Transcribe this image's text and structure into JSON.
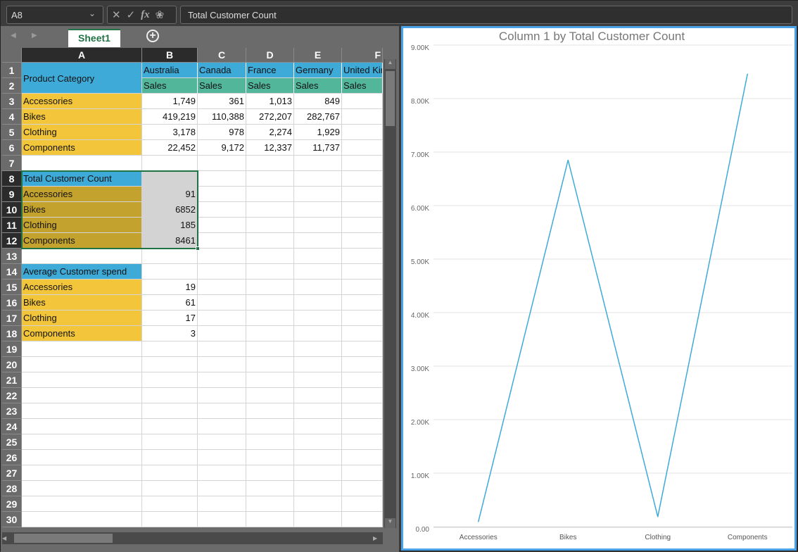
{
  "formula_bar": {
    "name_box": "A8",
    "formula": "Total Customer Count"
  },
  "sheet_tabs": [
    {
      "label": "Sheet1",
      "active": true
    }
  ],
  "columns": [
    "A",
    "B",
    "C",
    "D",
    "E",
    "F"
  ],
  "selected_columns": [
    "A",
    "B"
  ],
  "selected_rows": [
    8,
    9,
    10,
    11,
    12
  ],
  "colors": {
    "header_blue": "#3eaad8",
    "sales_green": "#52b69a",
    "category_yellow": "#f2c53b",
    "selected_gold": "#c4a22e",
    "selected_gray": "#d3d3d3",
    "chart_line": "#3eaad8",
    "selection": "#217346",
    "chart_border": "#4aa3e8"
  },
  "rows": [
    {
      "n": 1,
      "cells": [
        "Product Category",
        "Australia",
        "Canada",
        "France",
        "Germany",
        "United Kingdom"
      ]
    },
    {
      "n": 2,
      "cells": [
        "",
        "Sales",
        "Sales",
        "Sales",
        "Sales",
        "Sales"
      ]
    },
    {
      "n": 3,
      "cells": [
        "Accessories",
        "1,749",
        "361",
        "1,013",
        "849",
        ""
      ]
    },
    {
      "n": 4,
      "cells": [
        "Bikes",
        "419,219",
        "110,388",
        "272,207",
        "282,767",
        ""
      ]
    },
    {
      "n": 5,
      "cells": [
        "Clothing",
        "3,178",
        "978",
        "2,274",
        "1,929",
        ""
      ]
    },
    {
      "n": 6,
      "cells": [
        "Components",
        "22,452",
        "9,172",
        "12,337",
        "11,737",
        ""
      ]
    },
    {
      "n": 7,
      "cells": [
        "",
        "",
        "",
        "",
        "",
        ""
      ]
    },
    {
      "n": 8,
      "cells": [
        "Total Customer Count",
        "",
        "",
        "",
        "",
        ""
      ]
    },
    {
      "n": 9,
      "cells": [
        "Accessories",
        "91",
        "",
        "",
        "",
        ""
      ]
    },
    {
      "n": 10,
      "cells": [
        "Bikes",
        "6852",
        "",
        "",
        "",
        ""
      ]
    },
    {
      "n": 11,
      "cells": [
        "Clothing",
        "185",
        "",
        "",
        "",
        ""
      ]
    },
    {
      "n": 12,
      "cells": [
        "Components",
        "8461",
        "",
        "",
        "",
        ""
      ]
    },
    {
      "n": 13,
      "cells": [
        "",
        "",
        "",
        "",
        "",
        ""
      ]
    },
    {
      "n": 14,
      "cells": [
        "Average Customer spend",
        "",
        "",
        "",
        "",
        ""
      ]
    },
    {
      "n": 15,
      "cells": [
        "Accessories",
        "19",
        "",
        "",
        "",
        ""
      ]
    },
    {
      "n": 16,
      "cells": [
        "Bikes",
        "61",
        "",
        "",
        "",
        ""
      ]
    },
    {
      "n": 17,
      "cells": [
        "Clothing",
        "17",
        "",
        "",
        "",
        ""
      ]
    },
    {
      "n": 18,
      "cells": [
        "Components",
        "3",
        "",
        "",
        "",
        ""
      ]
    },
    {
      "n": 19,
      "cells": []
    },
    {
      "n": 20,
      "cells": []
    },
    {
      "n": 21,
      "cells": []
    },
    {
      "n": 22,
      "cells": []
    },
    {
      "n": 23,
      "cells": []
    },
    {
      "n": 24,
      "cells": []
    },
    {
      "n": 25,
      "cells": []
    },
    {
      "n": 26,
      "cells": []
    },
    {
      "n": 27,
      "cells": []
    },
    {
      "n": 28,
      "cells": []
    },
    {
      "n": 29,
      "cells": []
    },
    {
      "n": 30,
      "cells": []
    }
  ],
  "chart_data": {
    "type": "line",
    "title": "Column 1 by Total Customer Count",
    "categories": [
      "Accessories",
      "Bikes",
      "Clothing",
      "Components"
    ],
    "values": [
      91,
      6852,
      185,
      8461
    ],
    "ylim": [
      0,
      9000
    ],
    "yticks": [
      "0.00",
      "1.00K",
      "2.00K",
      "3.00K",
      "4.00K",
      "5.00K",
      "6.00K",
      "7.00K",
      "8.00K",
      "9.00K"
    ],
    "grid": true,
    "legend": "none"
  }
}
